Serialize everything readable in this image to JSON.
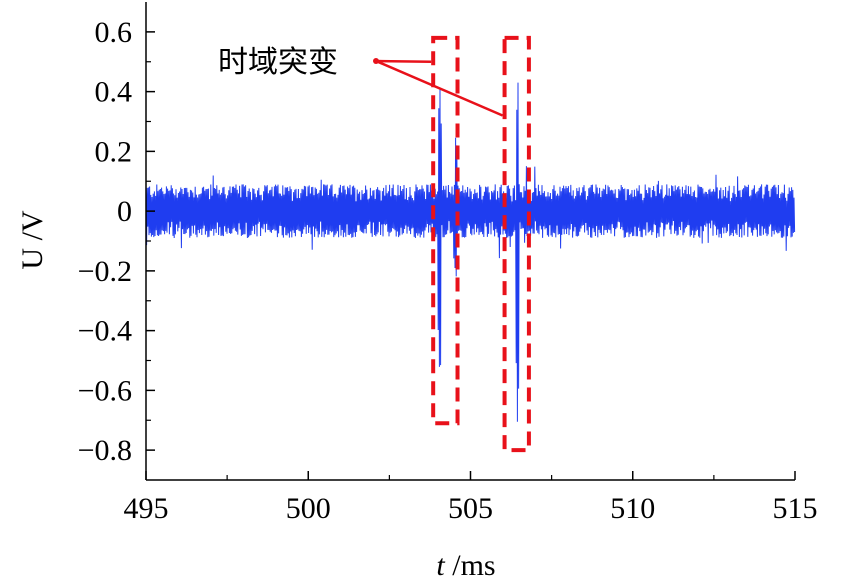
{
  "chart_data": {
    "type": "line",
    "title": "",
    "xlabel_italic": "t",
    "xlabel_unit": " /ms",
    "ylabel": "U /V",
    "xlim": [
      495,
      515
    ],
    "ylim": [
      -0.9,
      0.7
    ],
    "x_ticks": [
      495,
      500,
      505,
      510,
      515
    ],
    "x_tick_labels": [
      "495",
      "500",
      "505",
      "510",
      "515"
    ],
    "y_ticks": [
      0.6,
      0.4,
      0.2,
      0,
      -0.2,
      -0.4,
      -0.6,
      -0.8
    ],
    "y_tick_labels": [
      "0.6",
      "0.4",
      "0.2",
      "0",
      "−0.2",
      "−0.4",
      "−0.6",
      "−0.8"
    ],
    "grid": false,
    "series": [
      {
        "color": "#1f3df0",
        "baseline_noise_amplitude": 0.09,
        "noise_x_range": [
          495,
          515
        ],
        "spikes": [
          {
            "x": 504.05,
            "ymax": 0.55,
            "ymin": -0.68
          },
          {
            "x": 504.55,
            "ymax": 0.28,
            "ymin": -0.28
          },
          {
            "x": 506.45,
            "ymax": 0.5,
            "ymin": -0.78
          }
        ]
      }
    ],
    "annotation": {
      "text": "时域突变",
      "boxes": [
        {
          "x0": 503.85,
          "x1": 504.6,
          "y0": -0.71,
          "y1": 0.58
        },
        {
          "x0": 506.05,
          "x1": 506.8,
          "y0": -0.8,
          "y1": 0.58
        }
      ],
      "box_color": "#e8111a",
      "arrow_color": "#e8111a"
    }
  }
}
